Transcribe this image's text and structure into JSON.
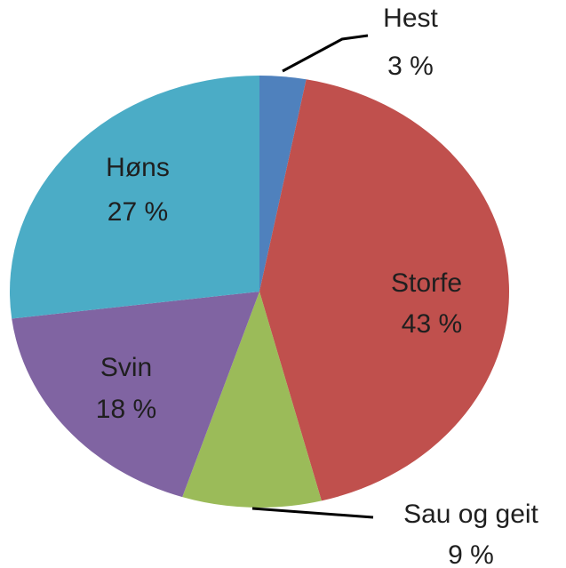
{
  "chart_data": {
    "type": "pie",
    "categories": [
      "Hest",
      "Storfe",
      "Sau og geit",
      "Svin",
      "Høns"
    ],
    "values": [
      3,
      43,
      9,
      18,
      27
    ],
    "value_labels": [
      "3 %",
      "43 %",
      "9 %",
      "18 %",
      "27 %"
    ],
    "colors": [
      "#4f81bd",
      "#c0504d",
      "#9bbb59",
      "#8064a2",
      "#4bacc6"
    ]
  }
}
